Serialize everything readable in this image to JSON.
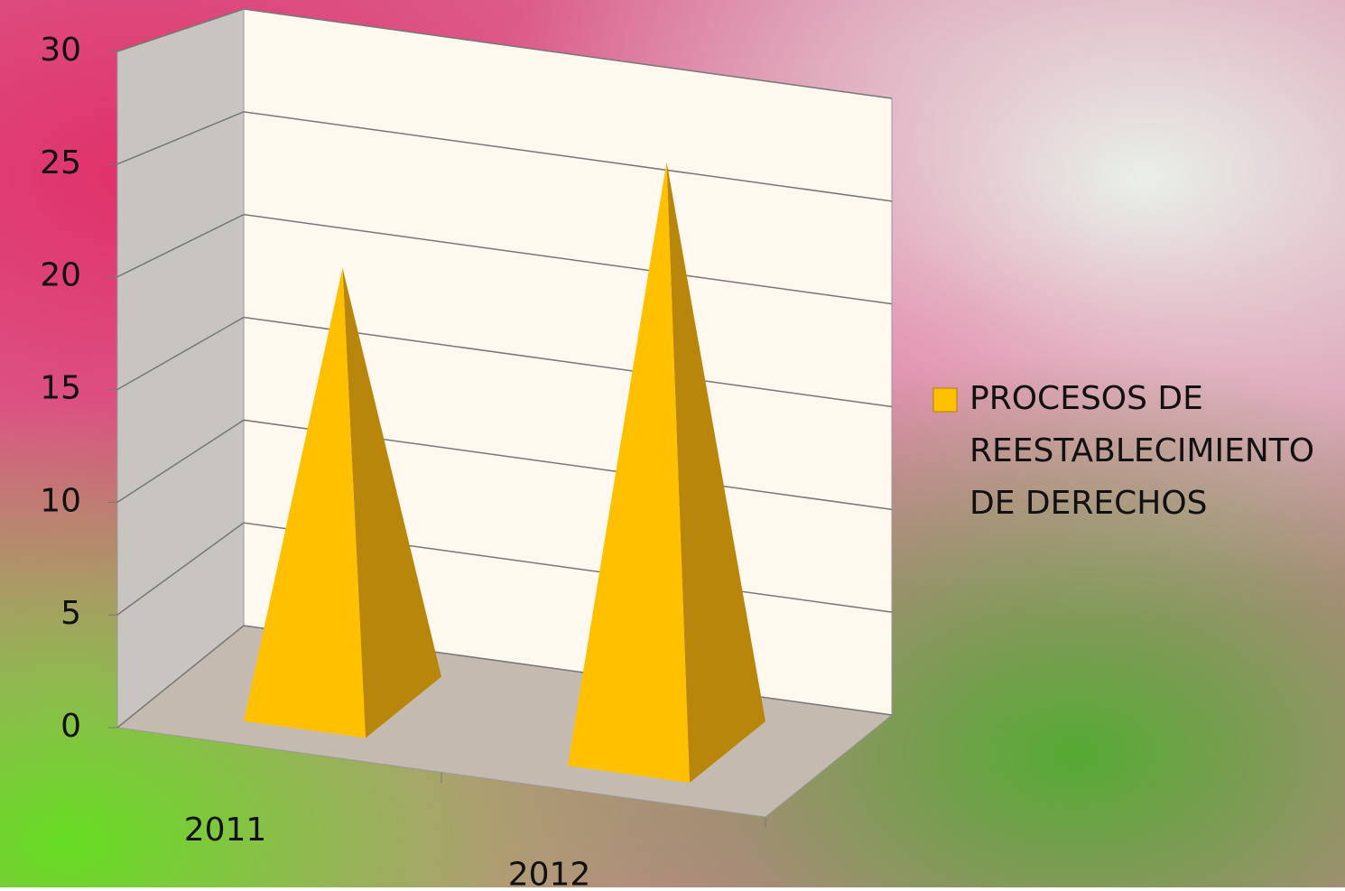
{
  "chart_data": {
    "type": "pyramid3d",
    "categories": [
      "2011",
      "2012"
    ],
    "series": [
      {
        "name": "PROCESOS DE REESTABLECIMIENTO DE DERECHOS",
        "color": "#ffc000",
        "values": [
          20,
          27
        ]
      }
    ],
    "ylim": [
      0,
      30
    ],
    "yticks": [
      0,
      5,
      10,
      15,
      20,
      25,
      30
    ],
    "grid": true,
    "legend": "right"
  }
}
